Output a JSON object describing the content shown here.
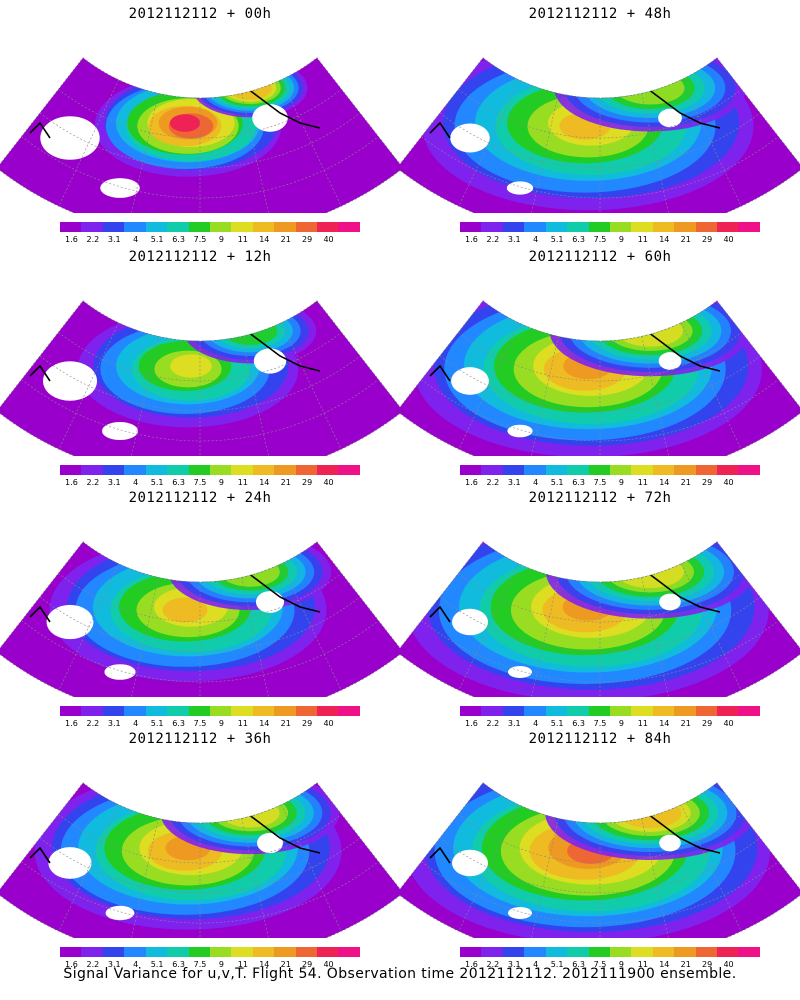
{
  "panels": [
    {
      "title": "2012112112 + 00h",
      "spread": 0.35,
      "peak": 1.0
    },
    {
      "title": "2012112112 + 48h",
      "spread": 0.9,
      "peak": 0.72
    },
    {
      "title": "2012112112 + 12h",
      "spread": 0.5,
      "peak": 0.62
    },
    {
      "title": "2012112112 + 60h",
      "spread": 0.95,
      "peak": 0.78
    },
    {
      "title": "2012112112 + 24h",
      "spread": 0.7,
      "peak": 0.72
    },
    {
      "title": "2012112112 + 72h",
      "spread": 1.0,
      "peak": 0.8
    },
    {
      "title": "2012112112 + 36h",
      "spread": 0.8,
      "peak": 0.78
    },
    {
      "title": "2012112112 + 84h",
      "spread": 1.0,
      "peak": 0.85
    }
  ],
  "colorbar": {
    "labels": [
      "1.6",
      "2.2",
      "3.1",
      "4",
      "5.1",
      "6.3",
      "7.5",
      "9",
      "11",
      "14",
      "21",
      "29",
      "40"
    ],
    "colors": [
      "#9900cc",
      "#7f22ee",
      "#3344ee",
      "#2288ff",
      "#11bbdd",
      "#11ccaa",
      "#22cc22",
      "#99dd22",
      "#dddd22",
      "#eebb22",
      "#ee9922",
      "#ee6633",
      "#ee2255",
      "#ee1188"
    ]
  },
  "footer": "Signal Variance for u,v,T. Flight 54. Observation time 2012112112. 2012111900 ensemble."
}
